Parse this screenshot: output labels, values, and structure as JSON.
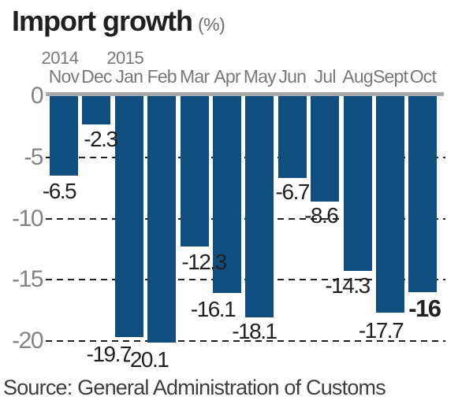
{
  "header": {
    "title": "Import growth",
    "unit": "(%)"
  },
  "source": "Source: General Administration of Customs",
  "chart_data": {
    "type": "bar",
    "title": "Import growth",
    "ylabel": "%",
    "categories": [
      "Nov",
      "Dec",
      "Jan",
      "Feb",
      "Mar",
      "Apr",
      "May",
      "Jun",
      "Jul",
      "Aug",
      "Sept",
      "Oct"
    ],
    "year_markers": [
      {
        "label": "2014",
        "month_index": 0
      },
      {
        "label": "2015",
        "month_index": 2
      }
    ],
    "values": [
      -6.5,
      -2.3,
      -19.7,
      -20.1,
      -12.3,
      -16.1,
      -18.1,
      -6.7,
      -8.6,
      -14.3,
      -17.7,
      -16
    ],
    "value_labels": [
      "-6.5",
      "-2.3",
      "-19.7",
      "-20.1",
      "-12.3",
      "-16.1",
      "-18.1",
      "-6.7",
      "-8.6",
      "-14.3",
      "-17.7",
      "-16"
    ],
    "emphasized_index": 11,
    "y_ticks": [
      0,
      -5,
      -10,
      -15,
      -20
    ],
    "ylim": [
      -20,
      0
    ],
    "grid": "dashed horizontal lines at each tick, behind bars",
    "legend": "none",
    "colors": {
      "bar": "#0f4e7e",
      "zero_axis": "#a7a9ac",
      "tick_labels": "#808285",
      "gridline": "#231f20",
      "value_labels": "#231f20",
      "title": "#231f20",
      "unit": "#6d6e71",
      "source": "#3d3d3f"
    }
  }
}
